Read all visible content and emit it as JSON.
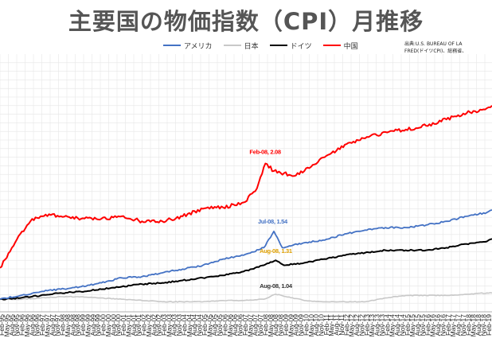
{
  "title": "主要国の物価指数（CPI）月推移",
  "legend": [
    {
      "label": "アメリカ",
      "color": "#4472c4"
    },
    {
      "label": "日本",
      "color": "#c8c8c8"
    },
    {
      "label": "ドイツ",
      "color": "#000000"
    },
    {
      "label": "中国",
      "color": "#ff0000"
    }
  ],
  "source_lines": [
    "出典:U.S. BUREAU OF LA",
    "FRED(ドイツCPI)、総務省、"
  ],
  "chart_data": {
    "type": "line",
    "x_tick_labels": [
      "Feb-95",
      "May-95",
      "Aug-95",
      "Nov-95",
      "Feb-96",
      "May-96",
      "Aug-96",
      "Nov-96",
      "Feb-97",
      "May-97",
      "Aug-97",
      "Nov-97",
      "Feb-98",
      "May-98",
      "Aug-98",
      "Nov-98",
      "Feb-99",
      "May-99",
      "Aug-99",
      "Nov-99",
      "Feb-00",
      "May-00",
      "Aug-00",
      "Nov-00",
      "Feb-01",
      "May-01",
      "Aug-01",
      "Nov-01",
      "Feb-02",
      "May-02",
      "Aug-02",
      "Nov-02",
      "Feb-03",
      "May-03",
      "Aug-03",
      "Nov-03",
      "Feb-04",
      "May-04",
      "Aug-04",
      "Nov-04",
      "Feb-05",
      "May-05",
      "Aug-05",
      "Nov-05",
      "Feb-06",
      "May-06",
      "Aug-06",
      "Nov-06",
      "Feb-07",
      "May-07",
      "Aug-07",
      "Nov-07",
      "Feb-08",
      "May-08",
      "Aug-08",
      "Nov-08",
      "Feb-09",
      "May-09",
      "Aug-09",
      "Nov-09",
      "Feb-10",
      "May-10",
      "Aug-10",
      "Nov-10",
      "Feb-11",
      "May-11",
      "Aug-11",
      "Nov-11",
      "Feb-12",
      "May-12",
      "Aug-12",
      "Nov-12",
      "Feb-13",
      "May-13",
      "Aug-13",
      "Nov-13",
      "Feb-14",
      "May-14",
      "Aug-14",
      "Nov-14",
      "Feb-15",
      "May-15",
      "Aug-15",
      "Nov-15",
      "Feb-16",
      "May-16",
      "Aug-16",
      "Nov-16",
      "Feb-17",
      "May-17",
      "Aug-17",
      "Nov-17",
      "Feb-18",
      "May-18",
      "Aug-18",
      "Nov-18",
      "Feb-19"
    ],
    "x_range": [
      "Jan-95",
      "Apr-19"
    ],
    "y_range": [
      0.9,
      2.95
    ],
    "grid": true,
    "legend_position": "top",
    "series": [
      {
        "name": "アメリカ",
        "color": "#4472c4",
        "points": [
          [
            "Jan-95",
            1.0
          ],
          [
            "Jan-96",
            1.03
          ],
          [
            "Jan-97",
            1.06
          ],
          [
            "Jan-98",
            1.08
          ],
          [
            "Jan-99",
            1.1
          ],
          [
            "Jan-00",
            1.13
          ],
          [
            "Jan-01",
            1.17
          ],
          [
            "Jan-02",
            1.18
          ],
          [
            "Jan-03",
            1.21
          ],
          [
            "Jan-04",
            1.24
          ],
          [
            "Jan-05",
            1.27
          ],
          [
            "Jan-06",
            1.32
          ],
          [
            "Jan-07",
            1.35
          ],
          [
            "Jan-08",
            1.41
          ],
          [
            "Jul-08",
            1.54
          ],
          [
            "Dec-08",
            1.41
          ],
          [
            "Jan-10",
            1.45
          ],
          [
            "Jan-11",
            1.47
          ],
          [
            "Jan-12",
            1.52
          ],
          [
            "Jan-13",
            1.55
          ],
          [
            "Jan-14",
            1.57
          ],
          [
            "Jan-15",
            1.57
          ],
          [
            "Jan-16",
            1.59
          ],
          [
            "Jan-17",
            1.62
          ],
          [
            "Jan-18",
            1.66
          ],
          [
            "Jan-19",
            1.69
          ],
          [
            "Apr-19",
            1.71
          ]
        ]
      },
      {
        "name": "日本",
        "color": "#c8c8c8",
        "points": [
          [
            "Jan-95",
            1.0
          ],
          [
            "Jan-96",
            1.0
          ],
          [
            "Jan-97",
            1.01
          ],
          [
            "Jan-98",
            1.02
          ],
          [
            "Jan-99",
            1.02
          ],
          [
            "Jan-00",
            1.01
          ],
          [
            "Jan-01",
            1.0
          ],
          [
            "Jan-02",
            0.99
          ],
          [
            "Jan-03",
            0.98
          ],
          [
            "Jan-04",
            0.98
          ],
          [
            "Jan-05",
            0.98
          ],
          [
            "Jan-06",
            0.99
          ],
          [
            "Jan-07",
            0.99
          ],
          [
            "Jan-08",
            1.0
          ],
          [
            "Aug-08",
            1.04
          ],
          [
            "Jan-10",
            0.99
          ],
          [
            "Jan-11",
            0.98
          ],
          [
            "Jan-12",
            0.98
          ],
          [
            "Jan-13",
            0.98
          ],
          [
            "Jan-14",
            1.01
          ],
          [
            "Jan-15",
            1.03
          ],
          [
            "Jan-16",
            1.03
          ],
          [
            "Jan-17",
            1.03
          ],
          [
            "Jan-18",
            1.04
          ],
          [
            "Jan-19",
            1.05
          ],
          [
            "Apr-19",
            1.05
          ]
        ]
      },
      {
        "name": "ドイツ",
        "color": "#000000",
        "points": [
          [
            "Jan-95",
            1.0
          ],
          [
            "Jan-96",
            1.01
          ],
          [
            "Jan-97",
            1.03
          ],
          [
            "Jan-98",
            1.05
          ],
          [
            "Jan-99",
            1.06
          ],
          [
            "Jan-00",
            1.08
          ],
          [
            "Jan-01",
            1.1
          ],
          [
            "Jan-02",
            1.12
          ],
          [
            "Jan-03",
            1.13
          ],
          [
            "Jan-04",
            1.15
          ],
          [
            "Jan-05",
            1.17
          ],
          [
            "Jan-06",
            1.19
          ],
          [
            "Jan-07",
            1.22
          ],
          [
            "Jan-08",
            1.27
          ],
          [
            "Aug-08",
            1.31
          ],
          [
            "Jan-09",
            1.27
          ],
          [
            "Jan-10",
            1.29
          ],
          [
            "Jan-11",
            1.32
          ],
          [
            "Jan-12",
            1.35
          ],
          [
            "Jan-13",
            1.37
          ],
          [
            "Jan-14",
            1.39
          ],
          [
            "Jan-15",
            1.39
          ],
          [
            "Jan-16",
            1.39
          ],
          [
            "Jan-17",
            1.41
          ],
          [
            "Jan-18",
            1.44
          ],
          [
            "Jan-19",
            1.46
          ],
          [
            "Apr-19",
            1.48
          ]
        ]
      },
      {
        "name": "中国",
        "color": "#ff0000",
        "points": [
          [
            "Jan-95",
            1.25
          ],
          [
            "Jul-95",
            1.38
          ],
          [
            "Jan-96",
            1.52
          ],
          [
            "Jul-96",
            1.62
          ],
          [
            "Jan-97",
            1.66
          ],
          [
            "Jul-97",
            1.67
          ],
          [
            "Jan-98",
            1.66
          ],
          [
            "Jan-99",
            1.64
          ],
          [
            "Jan-00",
            1.64
          ],
          [
            "Jan-01",
            1.66
          ],
          [
            "Jan-02",
            1.62
          ],
          [
            "Jan-03",
            1.62
          ],
          [
            "Jan-04",
            1.66
          ],
          [
            "Jan-05",
            1.72
          ],
          [
            "Jan-06",
            1.73
          ],
          [
            "Jan-07",
            1.77
          ],
          [
            "Aug-07",
            1.86
          ],
          [
            "Feb-08",
            2.08
          ],
          [
            "Jul-08",
            2.02
          ],
          [
            "Jul-09",
            1.98
          ],
          [
            "Jan-10",
            2.02
          ],
          [
            "Jan-11",
            2.13
          ],
          [
            "Jan-12",
            2.23
          ],
          [
            "Jan-13",
            2.28
          ],
          [
            "Jan-14",
            2.33
          ],
          [
            "Jan-15",
            2.35
          ],
          [
            "Jan-16",
            2.38
          ],
          [
            "Jan-17",
            2.43
          ],
          [
            "Jan-18",
            2.48
          ],
          [
            "Jan-19",
            2.52
          ],
          [
            "Apr-19",
            2.54
          ]
        ]
      }
    ],
    "annotations": [
      {
        "text": "Feb-08, 2.08",
        "x": "Feb-08",
        "y": 2.08,
        "series": "中国",
        "color": "#ff0000"
      },
      {
        "text": "Jul-08, 1.54",
        "x": "Jul-08",
        "y": 1.54,
        "series": "アメリカ",
        "color": "#4472c4"
      },
      {
        "text": "Aug-08, 1.31",
        "x": "Aug-08",
        "y": 1.31,
        "series": "ドイツ",
        "color": "#e0a000"
      },
      {
        "text": "Aug-08, 1.04",
        "x": "Aug-08",
        "y": 1.04,
        "series": "日本",
        "color": "#333333"
      }
    ]
  }
}
